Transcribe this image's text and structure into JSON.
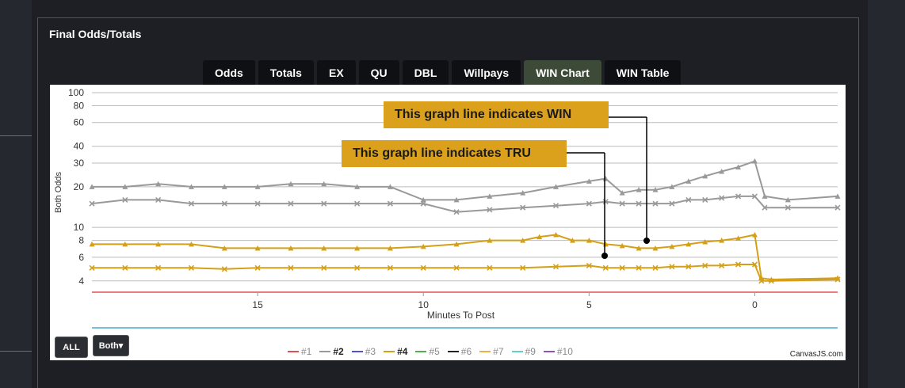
{
  "panel": {
    "title": "Final Odds/Totals"
  },
  "tabs": [
    {
      "label": "Odds",
      "active": false
    },
    {
      "label": "Totals",
      "active": false
    },
    {
      "label": "EX",
      "active": false
    },
    {
      "label": "QU",
      "active": false
    },
    {
      "label": "DBL",
      "active": false
    },
    {
      "label": "Willpays",
      "active": false
    },
    {
      "label": "WIN Chart",
      "active": true
    },
    {
      "label": "WIN Table",
      "active": false
    }
  ],
  "callouts": {
    "win": "This graph line indicates WIN",
    "tru": "This graph line indicates TRU"
  },
  "controls": {
    "all_label": "ALL",
    "both_label": "Both▾"
  },
  "credit": "CanvasJS.com",
  "colors": {
    "gold": "#d4a017",
    "gray": "#999999",
    "panel": "#1d1f24",
    "active_tab": "#3c4a37"
  },
  "legend": [
    {
      "label": "#1",
      "color": "#e05050",
      "bold": false
    },
    {
      "label": "#2",
      "color": "#999999",
      "bold": true
    },
    {
      "label": "#3",
      "color": "#5050e0",
      "bold": false
    },
    {
      "label": "#4",
      "color": "#d4a017",
      "bold": true
    },
    {
      "label": "#5",
      "color": "#50b050",
      "bold": false
    },
    {
      "label": "#6",
      "color": "#222222",
      "bold": false
    },
    {
      "label": "#7",
      "color": "#f0b040",
      "bold": false
    },
    {
      "label": "#9",
      "color": "#60d0d0",
      "bold": false
    },
    {
      "label": "#10",
      "color": "#9050c0",
      "bold": false
    }
  ],
  "chart_data": {
    "type": "line",
    "xlabel": "Minutes To Post",
    "ylabel": "Both Odds",
    "y_scale": "log",
    "ylim": [
      3.3,
      100
    ],
    "xlim": [
      20,
      -2.5
    ],
    "x_ticks": [
      15,
      10,
      5,
      0
    ],
    "y_ticks": [
      4,
      6,
      8,
      10,
      20,
      30,
      40,
      60,
      80,
      100
    ],
    "series": [
      {
        "name": "#2",
        "line": "WIN",
        "color": "#999999",
        "marker": "triangle",
        "x": [
          20,
          19,
          18,
          17,
          16,
          15,
          14,
          13,
          12,
          11,
          10,
          9,
          8,
          7,
          6,
          5,
          4.5,
          4,
          3.5,
          3,
          2.5,
          2,
          1.5,
          1,
          0.5,
          0,
          -0.3,
          -1,
          -2.5
        ],
        "y": [
          20,
          20,
          21,
          20,
          20,
          20,
          21,
          21,
          20,
          20,
          16,
          16,
          17,
          18,
          20,
          22,
          23,
          18,
          19,
          19,
          20,
          22,
          24,
          26,
          28,
          31,
          17,
          16,
          17
        ]
      },
      {
        "name": "#2",
        "line": "TRU",
        "color": "#999999",
        "marker": "x",
        "x": [
          20,
          19,
          18,
          17,
          16,
          15,
          14,
          13,
          12,
          11,
          10,
          9,
          8,
          7,
          6,
          5,
          4.5,
          4,
          3.5,
          3,
          2.5,
          2,
          1.5,
          1,
          0.5,
          0,
          -0.3,
          -1,
          -2.5
        ],
        "y": [
          15,
          16,
          16,
          15,
          15,
          15,
          15,
          15,
          15,
          15,
          15,
          13,
          13.5,
          14,
          14.5,
          15,
          15.5,
          15,
          15,
          15,
          15,
          16,
          16,
          16.5,
          17,
          17,
          14,
          14,
          14
        ]
      },
      {
        "name": "#4",
        "line": "WIN",
        "color": "#d4a017",
        "marker": "triangle",
        "x": [
          20,
          19,
          18,
          17,
          16,
          15,
          14,
          13,
          12,
          11,
          10,
          9,
          8,
          7,
          6.5,
          6,
          5.5,
          5,
          4.5,
          4,
          3.5,
          3,
          2.5,
          2,
          1.5,
          1,
          0.5,
          0,
          -0.2,
          -0.5,
          -2.5
        ],
        "y": [
          7.5,
          7.5,
          7.5,
          7.5,
          7,
          7,
          7,
          7,
          7,
          7,
          7.2,
          7.5,
          8,
          8,
          8.5,
          8.8,
          8,
          8,
          7.5,
          7.3,
          7,
          7,
          7.2,
          7.5,
          7.8,
          8,
          8.3,
          8.8,
          4.2,
          4.1,
          4.2
        ]
      },
      {
        "name": "#4",
        "line": "TRU",
        "color": "#d4a017",
        "marker": "x",
        "x": [
          20,
          19,
          18,
          17,
          16,
          15,
          14,
          13,
          12,
          11,
          10,
          9,
          8,
          7,
          6,
          5,
          4.5,
          4,
          3.5,
          3,
          2.5,
          2,
          1.5,
          1,
          0.5,
          0,
          -0.2,
          -0.5,
          -2.5
        ],
        "y": [
          5,
          5,
          5,
          5,
          4.9,
          5,
          5,
          5,
          5,
          5,
          5,
          5,
          5,
          5,
          5.1,
          5.2,
          5,
          5,
          5,
          5,
          5.1,
          5.1,
          5.2,
          5.2,
          5.3,
          5.3,
          4,
          4,
          4.1
        ]
      }
    ]
  }
}
